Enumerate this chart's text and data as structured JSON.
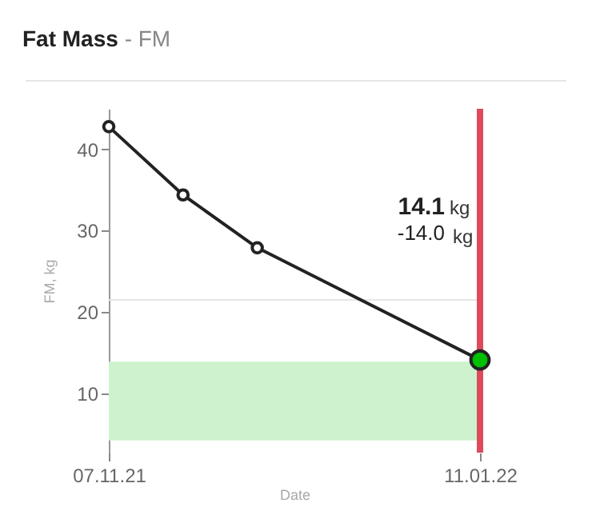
{
  "chart_data": {
    "type": "line",
    "title": "Fat Mass",
    "subtitle": "- FM",
    "xlabel": "Date",
    "ylabel": "FM, kg",
    "x": [
      "2021-11-07",
      "2021-11-20",
      "2021-12-03",
      "2022-01-11"
    ],
    "series": [
      {
        "color": "#222222",
        "values": [
          42.8,
          34.4,
          27.9,
          14.1
        ],
        "colors": [
          "#ffffff",
          "#ffffff",
          "#ffffff",
          "#00c000"
        ]
      }
    ],
    "xlim": [
      "2021-11-07",
      "2022-01-11"
    ],
    "xticks": [
      {
        "value": "2021-11-07",
        "label": "07.11.21"
      },
      {
        "value": "2022-01-11",
        "label": "11.01.22"
      }
    ],
    "ylim": [
      2.7,
      45
    ],
    "yticks": [
      10,
      20,
      30,
      40
    ],
    "grid": false,
    "marker": "circle",
    "line_style": "solid",
    "bands": [
      {
        "axis": "y",
        "from": 4.2,
        "to": 13.9,
        "color": "#cdf2cd"
      }
    ],
    "ref_lines": [
      {
        "axis": "y",
        "value": 21.5,
        "color": "#e6e6e6"
      },
      {
        "axis": "x",
        "value": "2022-01-11",
        "color": "#dc4b5c"
      }
    ],
    "annotations": [
      "14.1 kg",
      "-14.0 kg"
    ]
  }
}
